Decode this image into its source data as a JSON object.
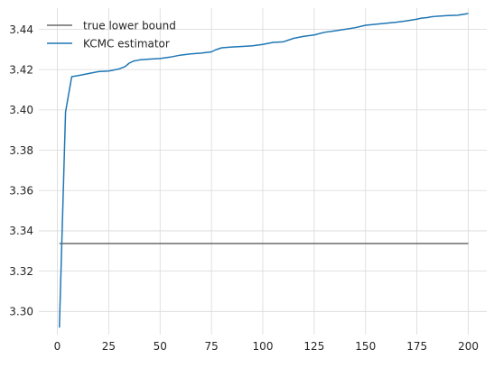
{
  "chart_data": {
    "type": "line",
    "title": "",
    "xlabel": "",
    "ylabel": "",
    "xlim": [
      -9,
      209
    ],
    "ylim": [
      3.2885,
      3.4505
    ],
    "xticks": [
      0,
      25,
      50,
      75,
      100,
      125,
      150,
      175,
      200
    ],
    "yticks": [
      3.3,
      3.32,
      3.34,
      3.36,
      3.38,
      3.4,
      3.42,
      3.44
    ],
    "ytick_labels": [
      "3.30",
      "3.32",
      "3.34",
      "3.36",
      "3.38",
      "3.40",
      "3.42",
      "3.44"
    ],
    "grid": true,
    "legend_position": "top-left",
    "series": [
      {
        "name": "true lower bound",
        "color": "#6b6b6b",
        "x": [
          1,
          200
        ],
        "y": [
          3.3337,
          3.3337
        ]
      },
      {
        "name": "KCMC estimator",
        "color": "#1f77b4",
        "x": [
          1,
          4,
          7,
          10,
          15,
          20,
          25,
          30,
          33,
          35,
          37,
          40,
          45,
          50,
          55,
          60,
          65,
          70,
          75,
          77,
          80,
          85,
          90,
          95,
          100,
          105,
          110,
          115,
          120,
          125,
          130,
          135,
          140,
          145,
          150,
          155,
          160,
          165,
          170,
          175,
          177,
          180,
          182,
          185,
          190,
          195,
          200
        ],
        "y": [
          3.292,
          3.399,
          3.4165,
          3.417,
          3.418,
          3.419,
          3.4193,
          3.4203,
          3.4215,
          3.4232,
          3.4242,
          3.4248,
          3.4252,
          3.4255,
          3.4262,
          3.4272,
          3.4278,
          3.4282,
          3.4288,
          3.4298,
          3.4308,
          3.4312,
          3.4315,
          3.4318,
          3.4325,
          3.4335,
          3.4338,
          3.4355,
          3.4365,
          3.4372,
          3.4385,
          3.4392,
          3.44,
          3.4408,
          3.442,
          3.4425,
          3.443,
          3.4435,
          3.4442,
          3.445,
          3.4455,
          3.4458,
          3.4462,
          3.4465,
          3.4468,
          3.447,
          3.4478
        ]
      }
    ]
  }
}
